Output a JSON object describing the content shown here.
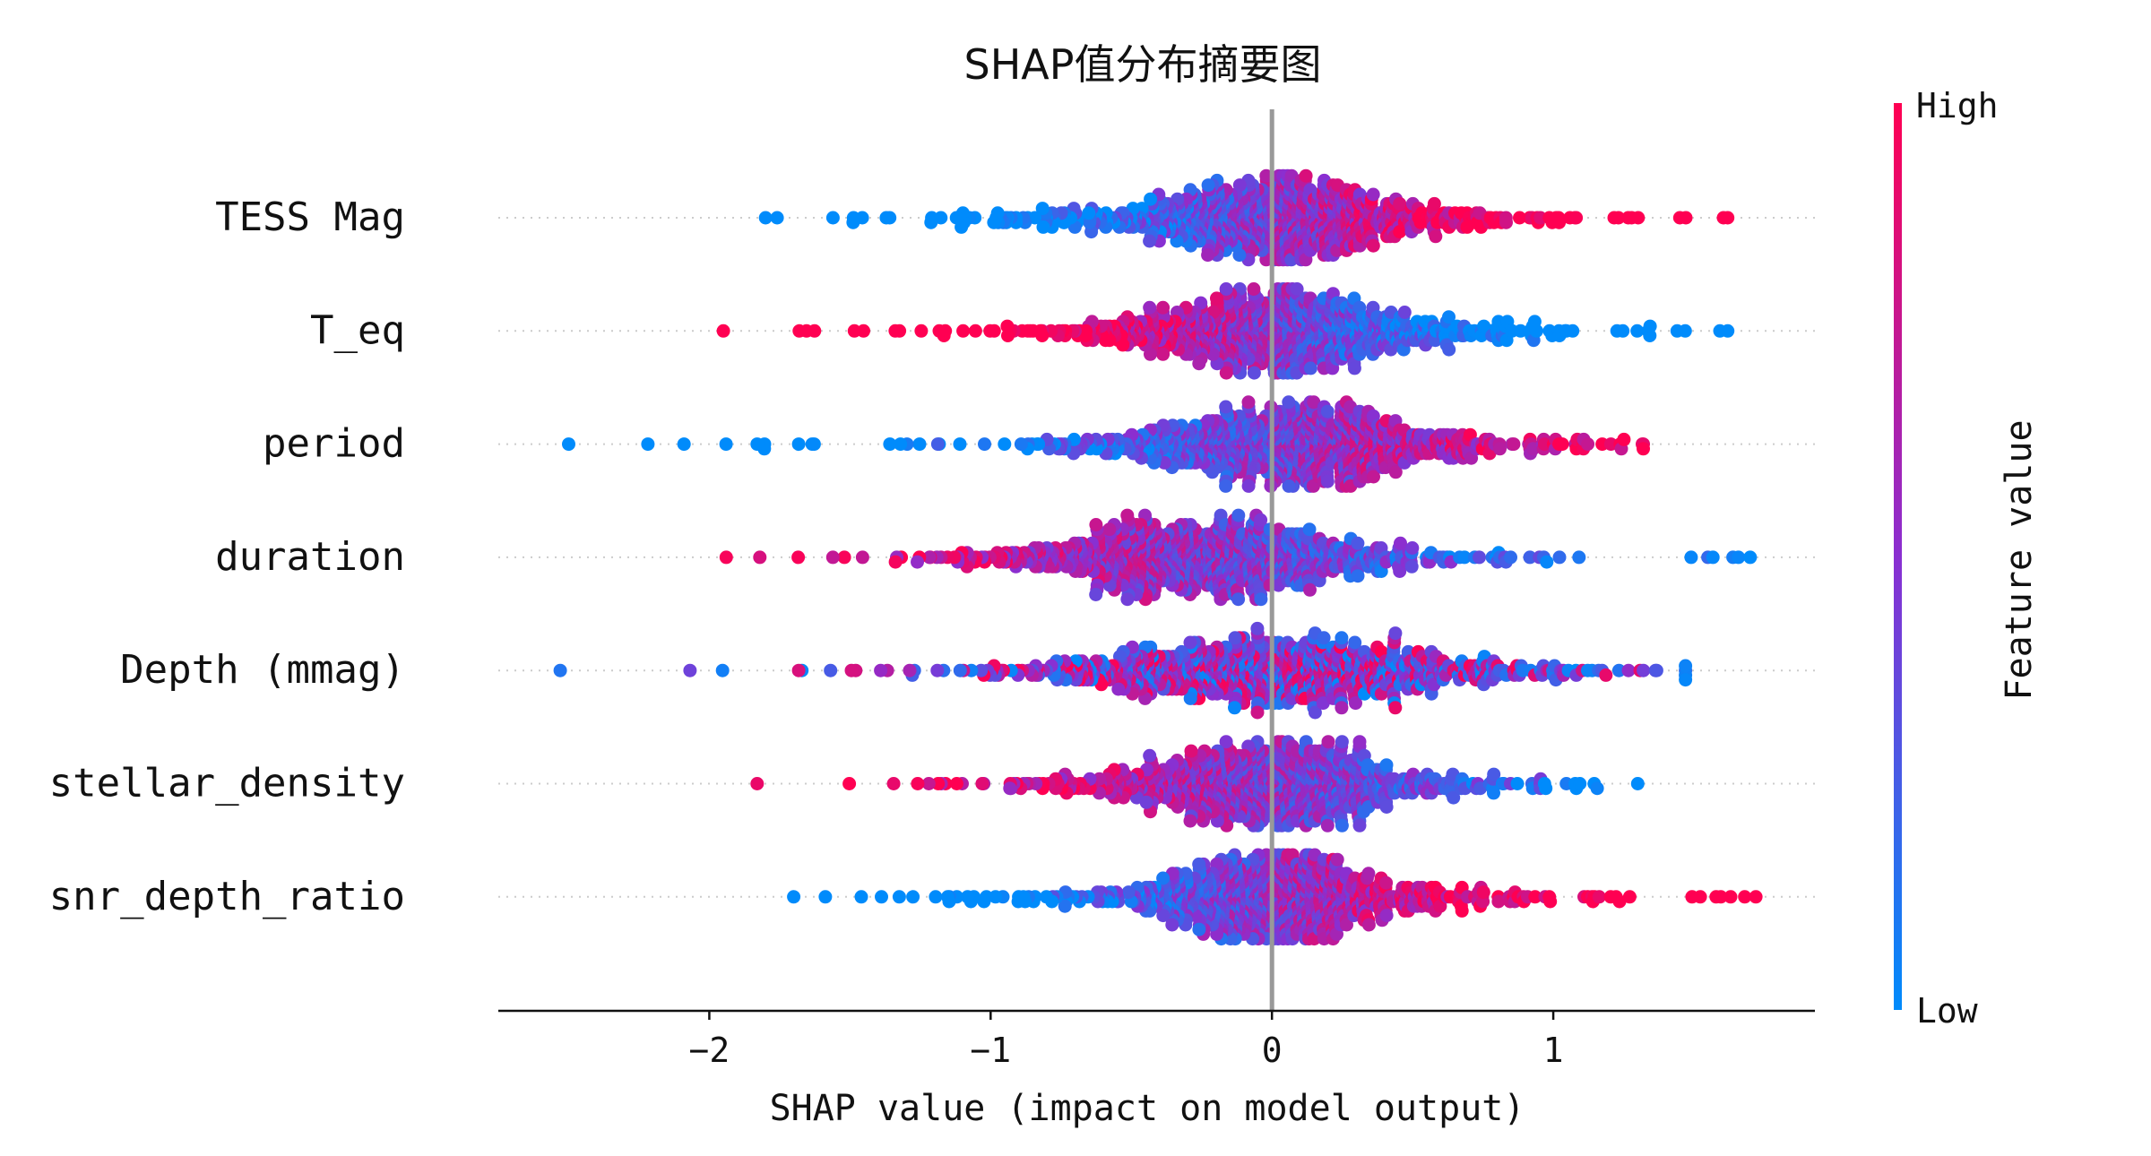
{
  "chart_data": {
    "type": "scatter",
    "subtype": "shap-beeswarm-summary",
    "title": "SHAP值分布摘要图",
    "xlabel": "SHAP value (impact on model output)",
    "ylabel": "",
    "xlim": [
      -2.75,
      1.93
    ],
    "xticks": [
      -2,
      -1,
      0,
      1
    ],
    "xtick_labels": [
      "−2",
      "−1",
      "0",
      "1"
    ],
    "zero_line": 0,
    "grid": "dotted row guides",
    "colorbar": {
      "title": "Feature value",
      "high_label": "High",
      "low_label": "Low",
      "high_color": "#ff0052",
      "mid_color": "#8a2fd1",
      "low_color": "#008bfb",
      "placement": "right"
    },
    "features": [
      {
        "name": "TESS Mag",
        "min": -1.8,
        "max": 1.62,
        "center": 0.0,
        "spread": 0.95,
        "color_trend": 1,
        "peak_width": 0.42
      },
      {
        "name": "T_eq",
        "min": -1.95,
        "max": 1.62,
        "center": 0.0,
        "spread": 0.9,
        "color_trend": -1,
        "peak_width": 0.45
      },
      {
        "name": "period",
        "min": -2.5,
        "max": 1.32,
        "center": 0.1,
        "spread": 0.95,
        "color_trend": 0.6,
        "peak_width": 0.5
      },
      {
        "name": "duration",
        "min": -1.94,
        "max": 1.7,
        "center": -0.25,
        "spread": 0.85,
        "color_trend": -0.4,
        "peak_width": 0.5
      },
      {
        "name": "Depth (mmag)",
        "min": -2.53,
        "max": 1.47,
        "center": 0.0,
        "spread": 1.0,
        "color_trend": 0,
        "peak_width": 0.7
      },
      {
        "name": "stellar_density",
        "min": -1.83,
        "max": 1.3,
        "center": 0.0,
        "spread": 0.9,
        "color_trend": -0.5,
        "peak_width": 0.4
      },
      {
        "name": "snr_depth_ratio",
        "min": -1.7,
        "max": 1.72,
        "center": 0.0,
        "spread": 0.9,
        "color_trend": 0.8,
        "peak_width": 0.35
      }
    ]
  }
}
